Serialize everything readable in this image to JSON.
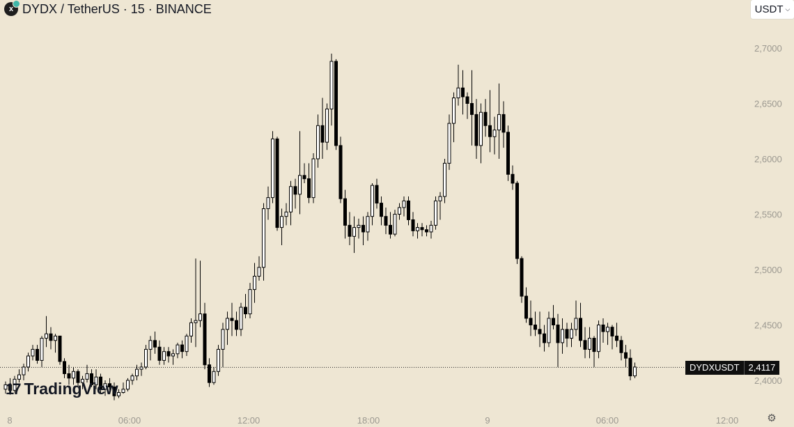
{
  "header": {
    "icon_text": "x",
    "title": "DYDX / TetherUS · 15 · BINANCE"
  },
  "currency_button": {
    "label": "USDT"
  },
  "price_tag": {
    "symbol": "DYDXUSDT",
    "value": "2,4117"
  },
  "logo": {
    "name": "TradingView",
    "mark": "17"
  },
  "icons": {
    "settings": "settings-icon",
    "chevron": "chevron-down-icon",
    "symbol": "dydx-icon"
  },
  "chart_data": {
    "type": "candlestick",
    "y_tick_labels": [
      "2,7000",
      "2,6500",
      "2,6000",
      "2,5500",
      "2,5000",
      "2,4500",
      "2,4000"
    ],
    "y_ticks": [
      2.7,
      2.65,
      2.6,
      2.55,
      2.5,
      2.45,
      2.4
    ],
    "x_tick_labels": [
      "8",
      "06:00",
      "12:00",
      "18:00",
      "9",
      "06:00",
      "12:00"
    ],
    "last_price": 2.4117,
    "up_color": "#ffffff",
    "down_color": "#000000",
    "candles": [
      [
        2.392,
        2.399,
        2.388,
        2.396
      ],
      [
        2.396,
        2.402,
        2.387,
        2.391
      ],
      [
        2.391,
        2.404,
        2.389,
        2.401
      ],
      [
        2.401,
        2.41,
        2.398,
        2.405
      ],
      [
        2.405,
        2.415,
        2.4,
        2.412
      ],
      [
        2.412,
        2.425,
        2.408,
        2.422
      ],
      [
        2.422,
        2.432,
        2.418,
        2.428
      ],
      [
        2.428,
        2.432,
        2.415,
        2.418
      ],
      [
        2.418,
        2.44,
        2.412,
        2.438
      ],
      [
        2.438,
        2.458,
        2.43,
        2.442
      ],
      [
        2.442,
        2.448,
        2.428,
        2.436
      ],
      [
        2.436,
        2.442,
        2.425,
        2.44
      ],
      [
        2.44,
        2.44,
        2.414,
        2.417
      ],
      [
        2.417,
        2.42,
        2.402,
        2.406
      ],
      [
        2.406,
        2.414,
        2.396,
        2.402
      ],
      [
        2.402,
        2.412,
        2.396,
        2.408
      ],
      [
        2.408,
        2.41,
        2.394,
        2.398
      ],
      [
        2.398,
        2.404,
        2.392,
        2.401
      ],
      [
        2.401,
        2.414,
        2.398,
        2.406
      ],
      [
        2.406,
        2.41,
        2.394,
        2.396
      ],
      [
        2.396,
        2.41,
        2.392,
        2.403
      ],
      [
        2.403,
        2.406,
        2.388,
        2.392
      ],
      [
        2.392,
        2.4,
        2.386,
        2.397
      ],
      [
        2.397,
        2.402,
        2.39,
        2.394
      ],
      [
        2.394,
        2.398,
        2.382,
        2.386
      ],
      [
        2.386,
        2.392,
        2.384,
        2.389
      ],
      [
        2.389,
        2.398,
        2.388,
        2.392
      ],
      [
        2.392,
        2.402,
        2.39,
        2.4
      ],
      [
        2.4,
        2.406,
        2.396,
        2.404
      ],
      [
        2.404,
        2.414,
        2.4,
        2.41
      ],
      [
        2.41,
        2.416,
        2.404,
        2.412
      ],
      [
        2.412,
        2.432,
        2.41,
        2.428
      ],
      [
        2.428,
        2.44,
        2.418,
        2.436
      ],
      [
        2.436,
        2.444,
        2.424,
        2.43
      ],
      [
        2.43,
        2.436,
        2.414,
        2.418
      ],
      [
        2.418,
        2.43,
        2.414,
        2.426
      ],
      [
        2.426,
        2.43,
        2.416,
        2.422
      ],
      [
        2.422,
        2.428,
        2.414,
        2.424
      ],
      [
        2.424,
        2.434,
        2.42,
        2.432
      ],
      [
        2.432,
        2.436,
        2.42,
        2.426
      ],
      [
        2.426,
        2.442,
        2.422,
        2.44
      ],
      [
        2.44,
        2.456,
        2.434,
        2.452
      ],
      [
        2.452,
        2.51,
        2.43,
        2.454
      ],
      [
        2.454,
        2.508,
        2.448,
        2.46
      ],
      [
        2.46,
        2.47,
        2.41,
        2.414
      ],
      [
        2.414,
        2.42,
        2.394,
        2.398
      ],
      [
        2.398,
        2.412,
        2.396,
        2.408
      ],
      [
        2.408,
        2.432,
        2.404,
        2.428
      ],
      [
        2.428,
        2.452,
        2.412,
        2.446
      ],
      [
        2.446,
        2.462,
        2.432,
        2.456
      ],
      [
        2.456,
        2.47,
        2.44,
        2.454
      ],
      [
        2.454,
        2.462,
        2.44,
        2.446
      ],
      [
        2.446,
        2.47,
        2.44,
        2.466
      ],
      [
        2.466,
        2.478,
        2.456,
        2.46
      ],
      [
        2.46,
        2.488,
        2.456,
        2.482
      ],
      [
        2.482,
        2.506,
        2.47,
        2.494
      ],
      [
        2.494,
        2.512,
        2.49,
        2.502
      ],
      [
        2.502,
        2.56,
        2.49,
        2.555
      ],
      [
        2.555,
        2.575,
        2.545,
        2.565
      ],
      [
        2.565,
        2.625,
        2.56,
        2.618
      ],
      [
        2.618,
        2.62,
        2.535,
        2.538
      ],
      [
        2.538,
        2.555,
        2.522,
        2.548
      ],
      [
        2.548,
        2.56,
        2.54,
        2.552
      ],
      [
        2.552,
        2.58,
        2.54,
        2.575
      ],
      [
        2.575,
        2.582,
        2.555,
        2.568
      ],
      [
        2.568,
        2.625,
        2.55,
        2.585
      ],
      [
        2.585,
        2.596,
        2.578,
        2.582
      ],
      [
        2.582,
        2.596,
        2.56,
        2.565
      ],
      [
        2.565,
        2.605,
        2.56,
        2.6
      ],
      [
        2.6,
        2.64,
        2.592,
        2.63
      ],
      [
        2.63,
        2.655,
        2.6,
        2.615
      ],
      [
        2.615,
        2.65,
        2.608,
        2.645
      ],
      [
        2.645,
        2.695,
        2.63,
        2.688
      ],
      [
        2.688,
        2.69,
        2.608,
        2.612
      ],
      [
        2.612,
        2.62,
        2.56,
        2.564
      ],
      [
        2.564,
        2.572,
        2.528,
        2.54
      ],
      [
        2.54,
        2.552,
        2.522,
        2.53
      ],
      [
        2.53,
        2.548,
        2.515,
        2.538
      ],
      [
        2.538,
        2.546,
        2.528,
        2.54
      ],
      [
        2.54,
        2.548,
        2.522,
        2.534
      ],
      [
        2.534,
        2.552,
        2.526,
        2.548
      ],
      [
        2.548,
        2.578,
        2.54,
        2.576
      ],
      [
        2.576,
        2.582,
        2.555,
        2.56
      ],
      [
        2.56,
        2.566,
        2.54,
        2.548
      ],
      [
        2.548,
        2.556,
        2.532,
        2.54
      ],
      [
        2.54,
        2.552,
        2.528,
        2.532
      ],
      [
        2.532,
        2.554,
        2.53,
        2.55
      ],
      [
        2.55,
        2.56,
        2.545,
        2.556
      ],
      [
        2.556,
        2.566,
        2.548,
        2.562
      ],
      [
        2.562,
        2.566,
        2.54,
        2.545
      ],
      [
        2.545,
        2.552,
        2.53,
        2.535
      ],
      [
        2.535,
        2.542,
        2.528,
        2.538
      ],
      [
        2.538,
        2.542,
        2.53,
        2.536
      ],
      [
        2.536,
        2.54,
        2.53,
        2.534
      ],
      [
        2.534,
        2.544,
        2.528,
        2.54
      ],
      [
        2.54,
        2.566,
        2.536,
        2.562
      ],
      [
        2.562,
        2.57,
        2.545,
        2.566
      ],
      [
        2.566,
        2.6,
        2.56,
        2.596
      ],
      [
        2.596,
        2.64,
        2.59,
        2.632
      ],
      [
        2.632,
        2.66,
        2.615,
        2.655
      ],
      [
        2.655,
        2.685,
        2.648,
        2.664
      ],
      [
        2.664,
        2.68,
        2.64,
        2.656
      ],
      [
        2.656,
        2.66,
        2.636,
        2.65
      ],
      [
        2.65,
        2.68,
        2.612,
        2.64
      ],
      [
        2.64,
        2.654,
        2.6,
        2.612
      ],
      [
        2.612,
        2.65,
        2.596,
        2.642
      ],
      [
        2.642,
        2.654,
        2.62,
        2.63
      ],
      [
        2.63,
        2.662,
        2.606,
        2.62
      ],
      [
        2.62,
        2.638,
        2.604,
        2.626
      ],
      [
        2.626,
        2.668,
        2.6,
        2.64
      ],
      [
        2.64,
        2.652,
        2.61,
        2.624
      ],
      [
        2.624,
        2.63,
        2.58,
        2.586
      ],
      [
        2.586,
        2.594,
        2.572,
        2.578
      ],
      [
        2.578,
        2.58,
        2.505,
        2.51
      ],
      [
        2.51,
        2.512,
        2.47,
        2.476
      ],
      [
        2.476,
        2.484,
        2.452,
        2.456
      ],
      [
        2.456,
        2.472,
        2.44,
        2.45
      ],
      [
        2.45,
        2.462,
        2.44,
        2.446
      ],
      [
        2.446,
        2.462,
        2.43,
        2.442
      ],
      [
        2.442,
        2.45,
        2.426,
        2.434
      ],
      [
        2.434,
        2.462,
        2.43,
        2.456
      ],
      [
        2.456,
        2.468,
        2.446,
        2.45
      ],
      [
        2.45,
        2.46,
        2.412,
        2.434
      ],
      [
        2.434,
        2.456,
        2.424,
        2.446
      ],
      [
        2.446,
        2.452,
        2.43,
        2.438
      ],
      [
        2.438,
        2.452,
        2.43,
        2.446
      ],
      [
        2.446,
        2.472,
        2.44,
        2.456
      ],
      [
        2.456,
        2.47,
        2.43,
        2.436
      ],
      [
        2.436,
        2.448,
        2.42,
        2.428
      ],
      [
        2.428,
        2.448,
        2.42,
        2.438
      ],
      [
        2.438,
        2.44,
        2.412,
        2.426
      ],
      [
        2.426,
        2.454,
        2.42,
        2.45
      ],
      [
        2.45,
        2.456,
        2.434,
        2.444
      ],
      [
        2.444,
        2.452,
        2.432,
        2.448
      ],
      [
        2.448,
        2.45,
        2.428,
        2.44
      ],
      [
        2.44,
        2.452,
        2.43,
        2.436
      ],
      [
        2.436,
        2.44,
        2.418,
        2.425
      ],
      [
        2.425,
        2.432,
        2.412,
        2.42
      ],
      [
        2.42,
        2.428,
        2.4,
        2.404
      ],
      [
        2.404,
        2.416,
        2.402,
        2.412
      ]
    ]
  }
}
